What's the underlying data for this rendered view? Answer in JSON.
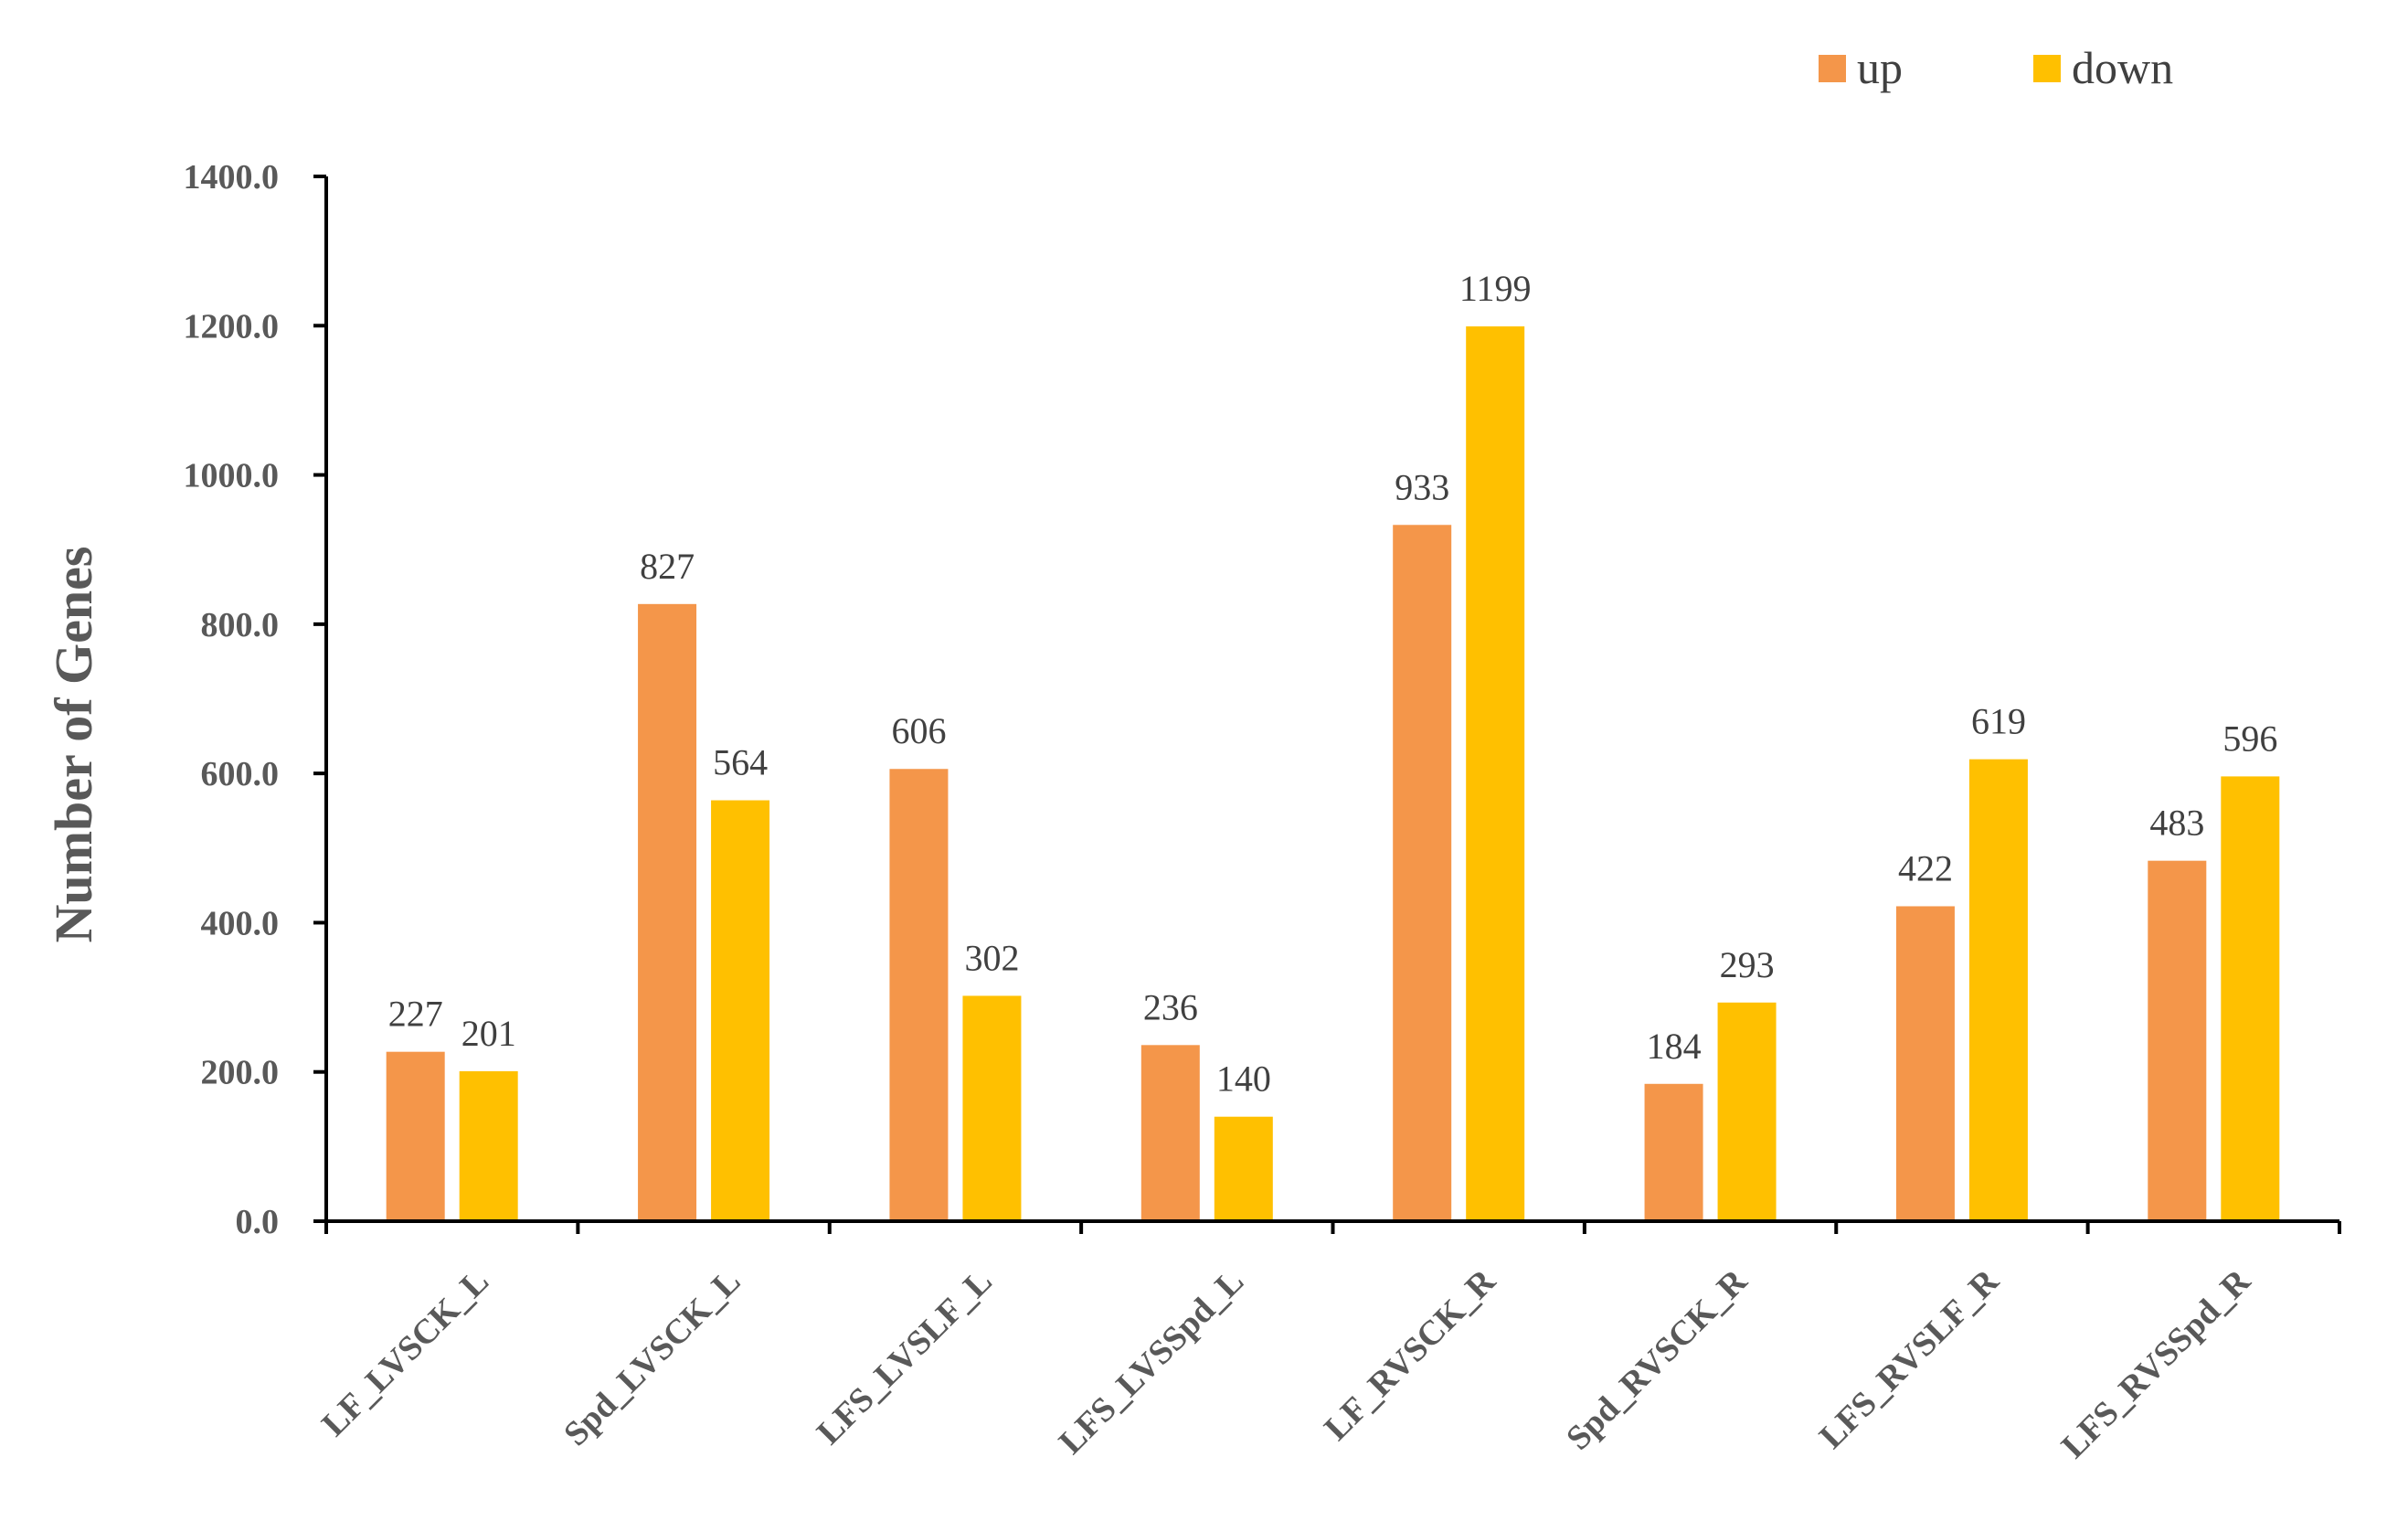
{
  "chart_data": {
    "type": "bar",
    "categories": [
      "LF_LVSCK_L",
      "Spd_LVSCK_L",
      "LFS_LVSLF_L",
      "LFS_LVSSpd_L",
      "LF_RVSCK_R",
      "Spd_RVSCK_R",
      "LFS_RVSLF_R",
      "LFS_RVSSpd_R"
    ],
    "series": [
      {
        "name": "up",
        "color": "#F4964A",
        "values": [
          227,
          827,
          606,
          236,
          933,
          184,
          422,
          483
        ]
      },
      {
        "name": "down",
        "color": "#FFC000",
        "values": [
          201,
          564,
          302,
          140,
          1199,
          293,
          619,
          596
        ]
      }
    ],
    "ylabel": "Number of Genes",
    "ylim": [
      0,
      1400
    ],
    "yticks": [
      "0.0",
      "200.0",
      "400.0",
      "600.0",
      "800.0",
      "1000.0",
      "1200.0",
      "1400.0"
    ],
    "grid": false,
    "legend_position": "top-right"
  }
}
